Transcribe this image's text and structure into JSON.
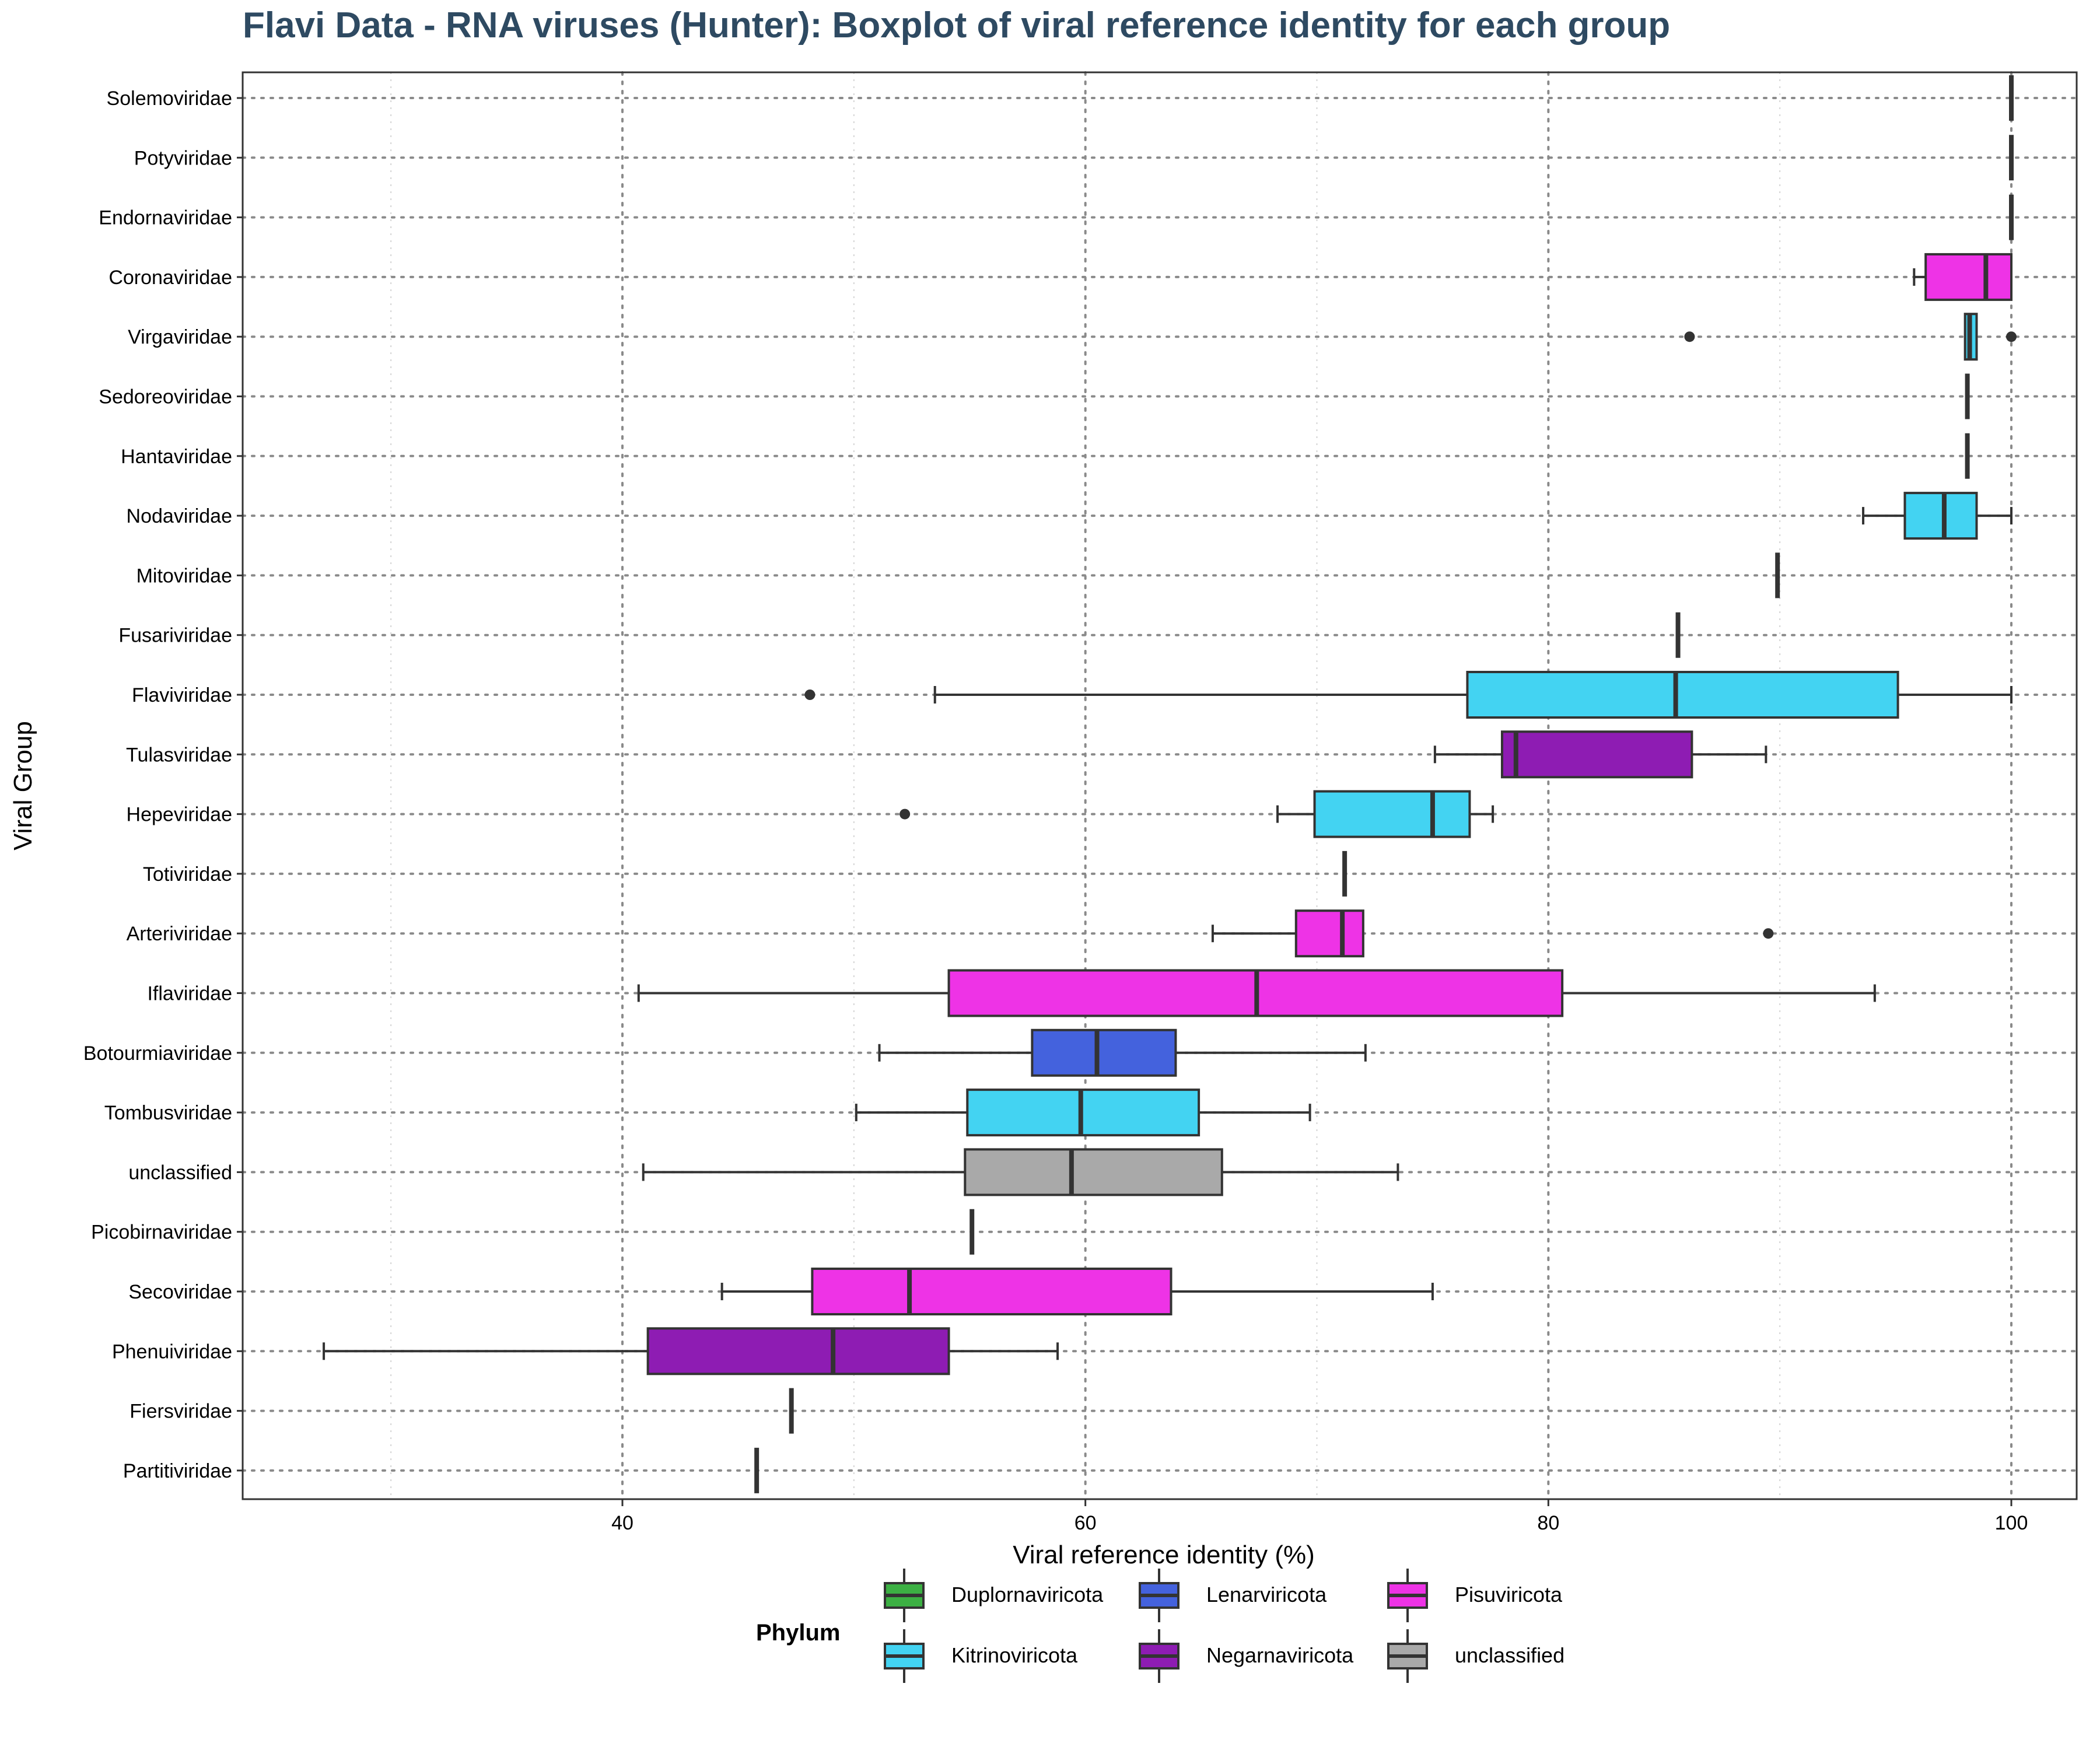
{
  "chart_data": {
    "type": "boxplot",
    "title": "Flavi Data - RNA viruses (Hunter): Boxplot of viral reference identity for each group",
    "xlabel": "Viral reference identity (%)",
    "ylabel": "Viral Group",
    "xlim": [
      25,
      101.8
    ],
    "x_ticks": [
      40,
      60,
      80,
      100
    ],
    "x_minor_ticks": [
      30,
      50,
      70,
      90
    ],
    "grid": true,
    "legend": {
      "title": "Phylum",
      "position": "bottom",
      "entries": [
        {
          "name": "Duplornaviricota",
          "color": "#3cb043"
        },
        {
          "name": "Lenarviricota",
          "color": "#4462dd"
        },
        {
          "name": "Pisuviricota",
          "color": "#ee33e6"
        },
        {
          "name": "Kitrinoviricota",
          "color": "#43d3f2"
        },
        {
          "name": "Negarnaviricota",
          "color": "#8e1cb3"
        },
        {
          "name": "unclassified",
          "color": "#a9a9a9"
        }
      ]
    },
    "groups": [
      {
        "name": "Solemoviridae",
        "phylum": "Lenarviricota",
        "low": 100,
        "q1": 100,
        "median": 100,
        "q3": 100,
        "high": 100,
        "outliers": []
      },
      {
        "name": "Potyviridae",
        "phylum": "Pisuviricota",
        "low": 100,
        "q1": 100,
        "median": 100,
        "q3": 100,
        "high": 100,
        "outliers": []
      },
      {
        "name": "Endornaviridae",
        "phylum": "Kitrinoviricota",
        "low": 100,
        "q1": 100,
        "median": 100,
        "q3": 100,
        "high": 100,
        "outliers": []
      },
      {
        "name": "Coronaviridae",
        "phylum": "Pisuviricota",
        "low": 95.8,
        "q1": 96.3,
        "median": 98.9,
        "q3": 100,
        "high": 100,
        "outliers": []
      },
      {
        "name": "Virgaviridae",
        "phylum": "Kitrinoviricota",
        "low": 98,
        "q1": 98,
        "median": 98.2,
        "q3": 98.5,
        "high": 98.5,
        "outliers": [
          86.1,
          100
        ]
      },
      {
        "name": "Sedoreoviridae",
        "phylum": "Duplornaviricota",
        "low": 98.1,
        "q1": 98.1,
        "median": 98.1,
        "q3": 98.1,
        "high": 98.1,
        "outliers": []
      },
      {
        "name": "Hantaviridae",
        "phylum": "Negarnaviricota",
        "low": 98.1,
        "q1": 98.1,
        "median": 98.1,
        "q3": 98.1,
        "high": 98.1,
        "outliers": []
      },
      {
        "name": "Nodaviridae",
        "phylum": "Kitrinoviricota",
        "low": 93.6,
        "q1": 95.4,
        "median": 97.1,
        "q3": 98.5,
        "high": 100,
        "outliers": []
      },
      {
        "name": "Mitoviridae",
        "phylum": "Lenarviricota",
        "low": 89.9,
        "q1": 89.9,
        "median": 89.9,
        "q3": 89.9,
        "high": 89.9,
        "outliers": []
      },
      {
        "name": "Fusariviridae",
        "phylum": "unclassified",
        "low": 85.6,
        "q1": 85.6,
        "median": 85.6,
        "q3": 85.6,
        "high": 85.6,
        "outliers": []
      },
      {
        "name": "Flaviviridae",
        "phylum": "Kitrinoviricota",
        "low": 53.5,
        "q1": 76.5,
        "median": 85.5,
        "q3": 95.1,
        "high": 100,
        "outliers": [
          48.1
        ]
      },
      {
        "name": "Tulasviridae",
        "phylum": "Negarnaviricota",
        "low": 75.1,
        "q1": 78,
        "median": 78.6,
        "q3": 86.2,
        "high": 89.4,
        "outliers": []
      },
      {
        "name": "Hepeviridae",
        "phylum": "Kitrinoviricota",
        "low": 68.3,
        "q1": 69.9,
        "median": 75,
        "q3": 76.6,
        "high": 77.6,
        "outliers": [
          52.2
        ]
      },
      {
        "name": "Totiviridae",
        "phylum": "Duplornaviricota",
        "low": 71.2,
        "q1": 71.2,
        "median": 71.2,
        "q3": 71.2,
        "high": 71.2,
        "outliers": []
      },
      {
        "name": "Arteriviridae",
        "phylum": "Pisuviricota",
        "low": 65.5,
        "q1": 69.1,
        "median": 71.1,
        "q3": 72,
        "high": 72,
        "outliers": [
          89.5
        ]
      },
      {
        "name": "Iflaviridae",
        "phylum": "Pisuviricota",
        "low": 40.7,
        "q1": 54.1,
        "median": 67.4,
        "q3": 80.6,
        "high": 94.1,
        "outliers": []
      },
      {
        "name": "Botourmiaviridae",
        "phylum": "Lenarviricota",
        "low": 51.1,
        "q1": 57.7,
        "median": 60.5,
        "q3": 63.9,
        "high": 72.1,
        "outliers": []
      },
      {
        "name": "Tombusviridae",
        "phylum": "Kitrinoviricota",
        "low": 50.1,
        "q1": 54.9,
        "median": 59.8,
        "q3": 64.9,
        "high": 69.7,
        "outliers": []
      },
      {
        "name": "unclassified",
        "phylum": "unclassified",
        "low": 40.9,
        "q1": 54.8,
        "median": 59.4,
        "q3": 65.9,
        "high": 73.5,
        "outliers": []
      },
      {
        "name": "Picobirnaviridae",
        "phylum": "unclassified",
        "low": 55.1,
        "q1": 55.1,
        "median": 55.1,
        "q3": 55.1,
        "high": 55.1,
        "outliers": []
      },
      {
        "name": "Secoviridae",
        "phylum": "Pisuviricota",
        "low": 44.3,
        "q1": 48.2,
        "median": 52.4,
        "q3": 63.7,
        "high": 75,
        "outliers": []
      },
      {
        "name": "Phenuiviridae",
        "phylum": "Negarnaviricota",
        "low": 27.1,
        "q1": 41.1,
        "median": 49.1,
        "q3": 54.1,
        "high": 58.8,
        "outliers": []
      },
      {
        "name": "Fiersviridae",
        "phylum": "Lenarviricota",
        "low": 47.3,
        "q1": 47.3,
        "median": 47.3,
        "q3": 47.3,
        "high": 47.3,
        "outliers": []
      },
      {
        "name": "Partitiviridae",
        "phylum": "Duplornaviricota",
        "low": 45.8,
        "q1": 45.8,
        "median": 45.8,
        "q3": 45.8,
        "high": 45.8,
        "outliers": []
      }
    ]
  }
}
